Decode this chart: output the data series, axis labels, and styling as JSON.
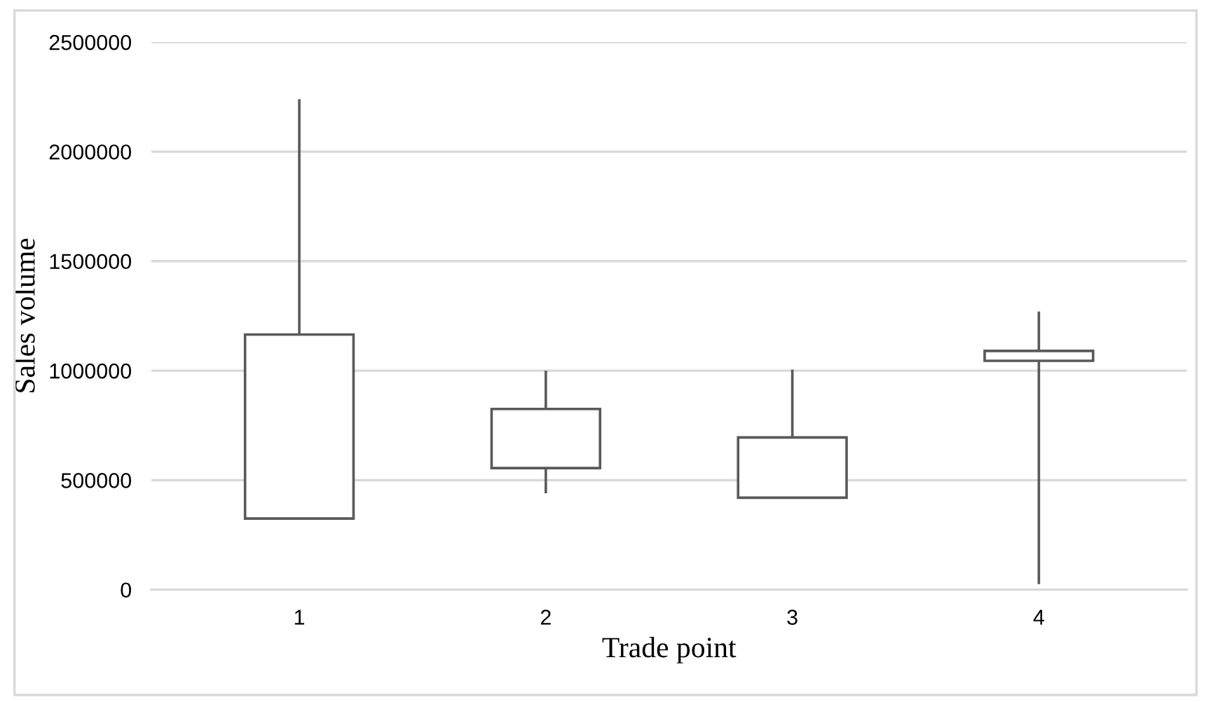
{
  "chart_data": {
    "type": "candlestick",
    "xlabel": "Trade point",
    "ylabel": "Sales volume",
    "categories": [
      "1",
      "2",
      "3",
      "4"
    ],
    "ohlc": [
      [
        325000,
        2240000,
        325000,
        1165000
      ],
      [
        555000,
        1000000,
        440000,
        825000
      ],
      [
        420000,
        1005000,
        420000,
        695000
      ],
      [
        1045000,
        1270000,
        25000,
        1090000
      ]
    ],
    "color": "#595959",
    "ylim": [
      0,
      2500000
    ],
    "yticks": [
      0,
      500000,
      1000000,
      1500000,
      2000000,
      2500000
    ],
    "grid": "y"
  }
}
